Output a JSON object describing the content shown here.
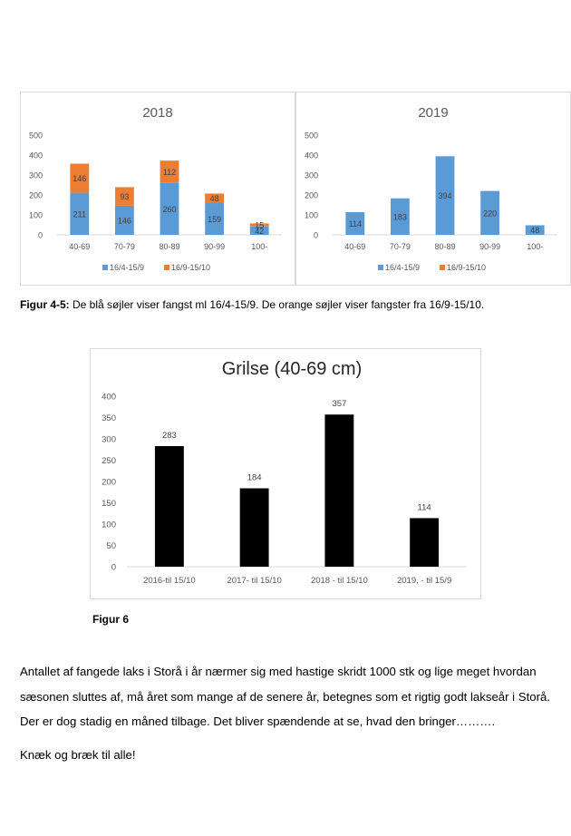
{
  "chart_data": [
    {
      "type": "bar",
      "stacked": true,
      "title": "2018",
      "categories": [
        "40-69",
        "70-79",
        "80-89",
        "90-99",
        "100-"
      ],
      "series": [
        {
          "name": "16/4-15/9",
          "values": [
            211,
            146,
            260,
            159,
            42
          ],
          "color": "#5b9bd5"
        },
        {
          "name": "16/9-15/10",
          "values": [
            146,
            93,
            112,
            48,
            15
          ],
          "color": "#ed7d31"
        }
      ],
      "ylim": [
        0,
        500
      ],
      "yticks": [
        "0",
        "100",
        "200",
        "300",
        "400",
        "500"
      ],
      "legend": "bottom",
      "grid": false
    },
    {
      "type": "bar",
      "stacked": true,
      "title": "2019",
      "categories": [
        "40-69",
        "70-79",
        "80-89",
        "90-99",
        "100-"
      ],
      "series": [
        {
          "name": "16/4-15/9",
          "values": [
            114,
            183,
            394,
            220,
            48
          ],
          "color": "#5b9bd5"
        },
        {
          "name": "16/9-15/10",
          "values": [
            0,
            0,
            0,
            0,
            0
          ],
          "color": "#ed7d31"
        }
      ],
      "ylim": [
        0,
        500
      ],
      "yticks": [
        "0",
        "100",
        "200",
        "300",
        "400",
        "500"
      ],
      "legend": "bottom",
      "grid": false
    },
    {
      "type": "bar",
      "title": "Grilse (40-69 cm)",
      "categories": [
        "2016-til 15/10",
        "2017- til 15/10",
        "2018 - til 15/10",
        "2019, - til 15/9"
      ],
      "values": [
        283,
        184,
        357,
        114
      ],
      "color": "#000000",
      "ylim": [
        0,
        400
      ],
      "yticks": [
        "0",
        "50",
        "100",
        "150",
        "200",
        "250",
        "300",
        "350",
        "400"
      ],
      "grid": false
    }
  ],
  "caption": {
    "label": "Figur 4-5:",
    "text": " De blå søjler viser fangst ml 16/4-15/9. De orange søjler viser fangster fra 16/9-15/10."
  },
  "fig6_label": "Figur 6",
  "paragraph_lines": [
    "Antallet af fangede laks i Storå i år nærmer sig med hastige skridt 1000 stk og lige meget hvordan",
    "sæsonen sluttes af, må året som mange af de senere år, betegnes som et rigtig godt lakseår i Storå.",
    "Der er dog stadig en måned tilbage. Det bliver spændende at se, hvad den bringer………."
  ],
  "closing": "Knæk og bræk til alle!"
}
